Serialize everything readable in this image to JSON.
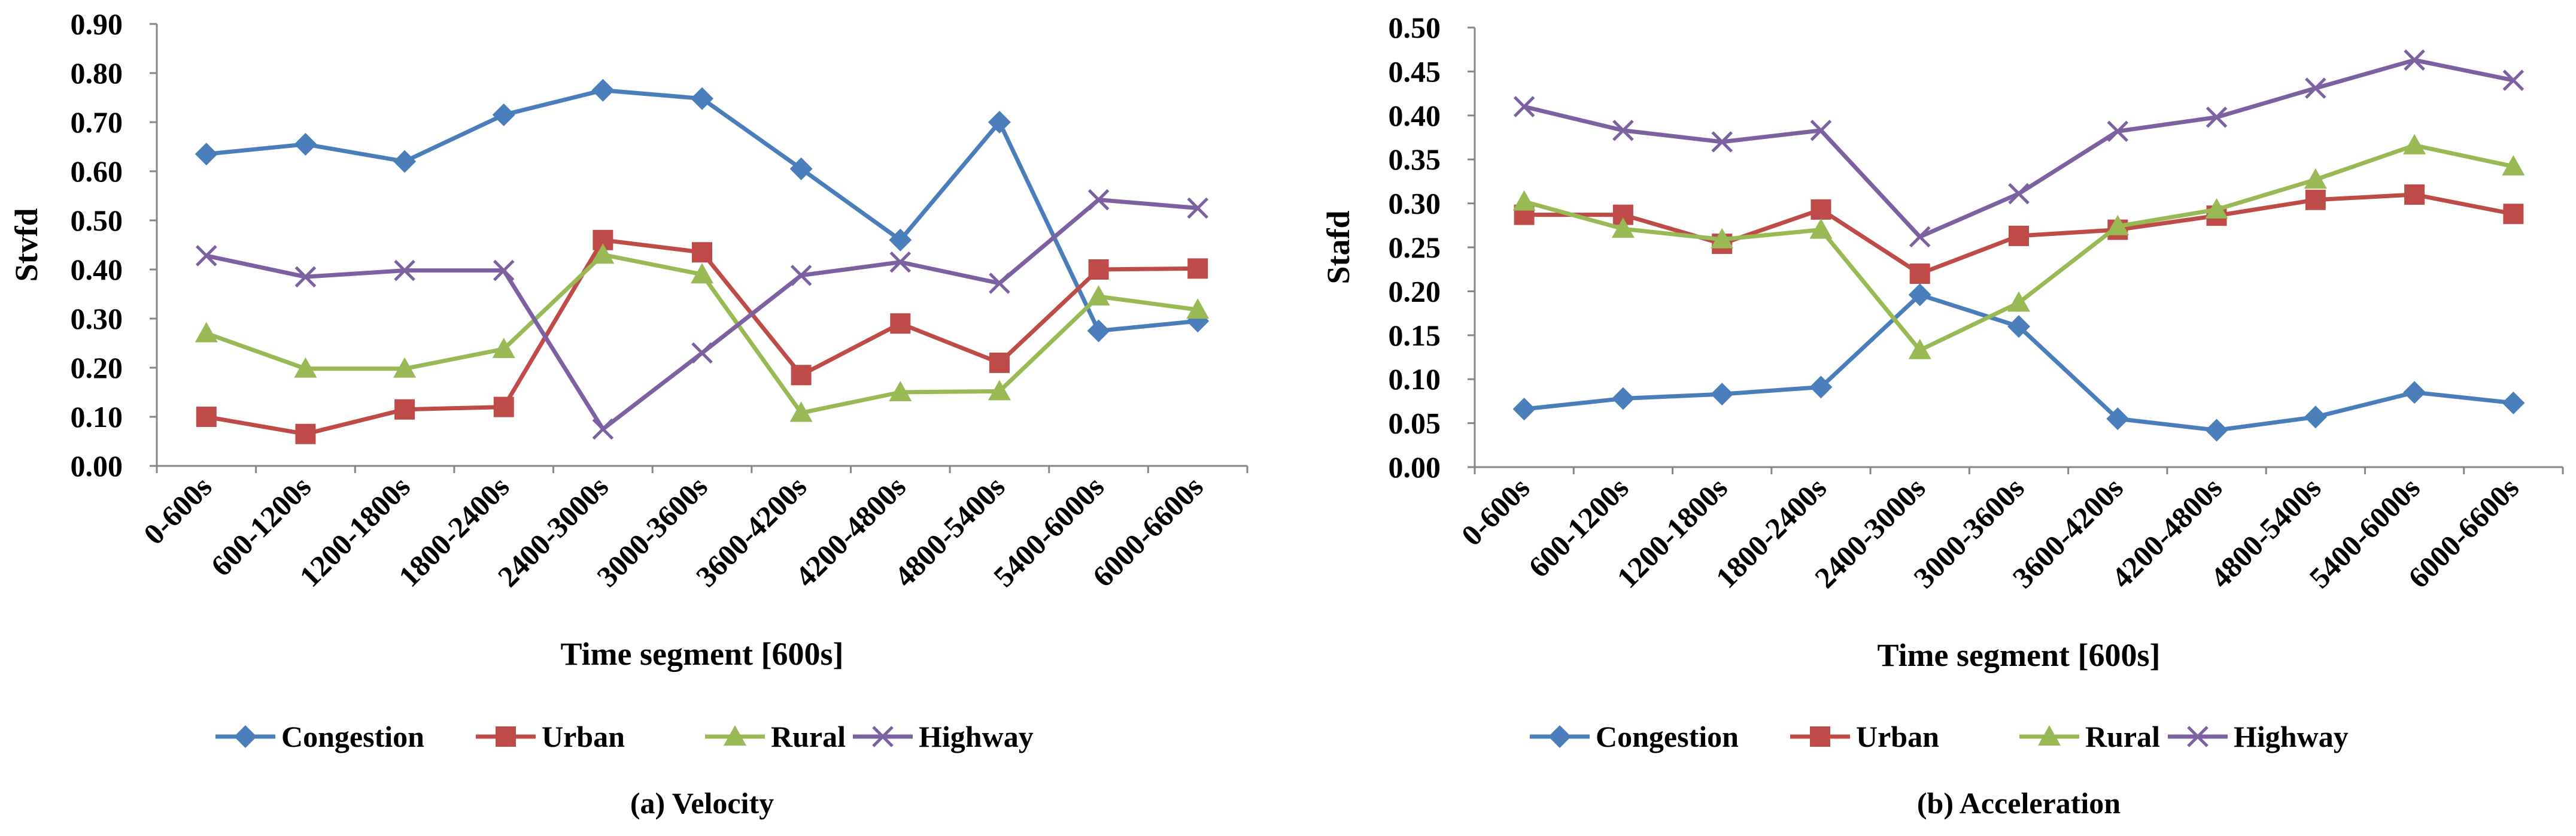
{
  "colors": {
    "Congestion": "#4A7EBB",
    "Urban": "#BE4B48",
    "Rural": "#98B954",
    "Highway": "#7D60A0"
  },
  "chart_data": [
    {
      "type": "line",
      "title": "(a) Velocity",
      "xlabel": "Time segment [600s]",
      "ylabel": "Stvfd",
      "ylim": [
        0,
        0.9
      ],
      "ytick_step": 0.1,
      "ytick_labels": [
        "0.00",
        "0.10",
        "0.20",
        "0.30",
        "0.40",
        "0.50",
        "0.60",
        "0.70",
        "0.80",
        "0.90"
      ],
      "legend_position": "bottom",
      "categories": [
        "0-600s",
        "600-1200s",
        "1200-1800s",
        "1800-2400s",
        "2400-3000s",
        "3000-3600s",
        "3600-4200s",
        "4200-4800s",
        "4800-5400s",
        "5400-6000s",
        "6000-6600s"
      ],
      "series": [
        {
          "name": "Congestion",
          "marker": "diamond",
          "values": [
            0.635,
            0.655,
            0.62,
            0.715,
            0.765,
            0.748,
            0.605,
            0.46,
            0.7,
            0.275,
            0.295
          ]
        },
        {
          "name": "Urban",
          "marker": "square",
          "values": [
            0.1,
            0.065,
            0.115,
            0.12,
            0.46,
            0.435,
            0.185,
            0.29,
            0.21,
            0.4,
            0.402
          ]
        },
        {
          "name": "Rural",
          "marker": "triangle",
          "values": [
            0.27,
            0.198,
            0.198,
            0.238,
            0.43,
            0.39,
            0.108,
            0.15,
            0.152,
            0.345,
            0.318
          ]
        },
        {
          "name": "Highway",
          "marker": "x",
          "values": [
            0.428,
            0.385,
            0.398,
            0.398,
            0.075,
            0.23,
            0.388,
            0.415,
            0.372,
            0.542,
            0.525
          ]
        }
      ]
    },
    {
      "type": "line",
      "title": "(b) Acceleration",
      "xlabel": "Time segment [600s]",
      "ylabel": "Stafd",
      "ylim": [
        0,
        0.5
      ],
      "ytick_step": 0.05,
      "ytick_labels": [
        "0.00",
        "0.05",
        "0.10",
        "0.15",
        "0.20",
        "0.25",
        "0.30",
        "0.35",
        "0.40",
        "0.45",
        "0.50"
      ],
      "legend_position": "bottom",
      "categories": [
        "0-600s",
        "600-1200s",
        "1200-1800s",
        "1800-2400s",
        "2400-3000s",
        "3000-3600s",
        "3600-4200s",
        "4200-4800s",
        "4800-5400s",
        "5400-6000s",
        "6000-6600s"
      ],
      "series": [
        {
          "name": "Congestion",
          "marker": "diamond",
          "values": [
            0.066,
            0.078,
            0.083,
            0.091,
            0.196,
            0.16,
            0.055,
            0.042,
            0.057,
            0.085,
            0.073
          ]
        },
        {
          "name": "Urban",
          "marker": "square",
          "values": [
            0.287,
            0.287,
            0.254,
            0.293,
            0.22,
            0.263,
            0.27,
            0.286,
            0.304,
            0.31,
            0.288
          ]
        },
        {
          "name": "Rural",
          "marker": "triangle",
          "values": [
            0.302,
            0.271,
            0.259,
            0.27,
            0.133,
            0.187,
            0.274,
            0.293,
            0.327,
            0.366,
            0.342
          ]
        },
        {
          "name": "Highway",
          "marker": "x",
          "values": [
            0.41,
            0.383,
            0.37,
            0.383,
            0.262,
            0.311,
            0.382,
            0.398,
            0.431,
            0.463,
            0.44
          ]
        }
      ]
    }
  ]
}
